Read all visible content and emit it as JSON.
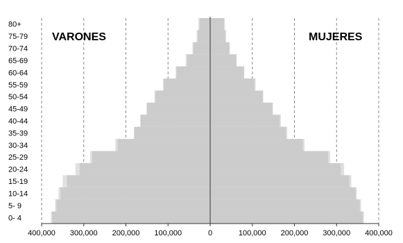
{
  "chart_data": {
    "type": "bar",
    "orientation": "horizontal",
    "subtype": "population-pyramid",
    "categories": [
      "80+",
      "75-79",
      "70-74",
      "65-69",
      "60-64",
      "55-59",
      "50-54",
      "45-49",
      "40-44",
      "35-39",
      "30-34",
      "25-29",
      "20-24",
      "15-19",
      "10-14",
      "5- 9",
      "0- 4"
    ],
    "series": [
      {
        "name": "VARONES",
        "side": "left",
        "values": [
          25000,
          30000,
          40000,
          55000,
          80000,
          110000,
          130000,
          150000,
          165000,
          180000,
          220000,
          280000,
          310000,
          340000,
          355000,
          365000,
          375000
        ]
      },
      {
        "name": "MUJERES",
        "side": "right",
        "values": [
          33000,
          36000,
          45000,
          62000,
          80000,
          105000,
          125000,
          148000,
          165000,
          180000,
          220000,
          280000,
          310000,
          330000,
          345000,
          355000,
          362000
        ]
      }
    ],
    "overlay_series": [
      {
        "side": "left",
        "values": [
          28000,
          32000,
          42000,
          58000,
          82000,
          112000,
          132000,
          151000,
          166000,
          181000,
          225000,
          285000,
          320000,
          350000,
          360000,
          368000,
          378000
        ]
      },
      {
        "side": "right",
        "values": [
          35000,
          38000,
          47000,
          63000,
          81000,
          108000,
          126000,
          149000,
          168000,
          183000,
          224000,
          285000,
          318000,
          335000,
          348000,
          358000,
          365000
        ]
      }
    ],
    "x_ticks": [
      "400,000",
      "300,000",
      "200,000",
      "100,000",
      "0",
      "100,000",
      "200,000",
      "300,000",
      "400,000"
    ],
    "x_tick_values": [
      -400000,
      -300000,
      -200000,
      -100000,
      0,
      100000,
      200000,
      300000,
      400000
    ],
    "xlim": [
      -400000,
      400000
    ],
    "grid": true,
    "colors": {
      "bar": "#cccccc",
      "overlay": "#e0e0e0",
      "grid": "#888888",
      "axis": "#333333",
      "text": "#000000"
    },
    "labels": {
      "left": "VARONES",
      "right": "MUJERES"
    }
  }
}
